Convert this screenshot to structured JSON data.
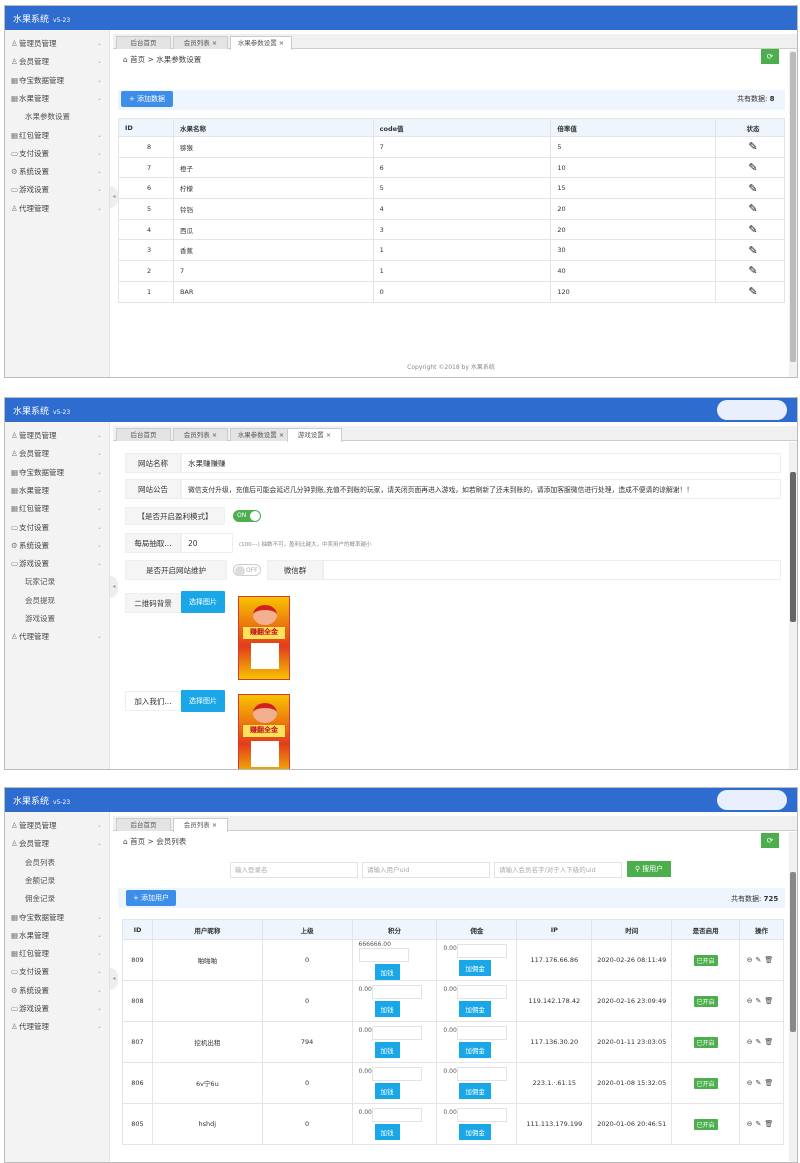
{
  "app": {
    "title": "水果系统",
    "version": "v5-23"
  },
  "colors": {
    "header": "#2f6cd0",
    "primary_button": "#3d8ee8",
    "select_button": "#1aa7e8",
    "success": "#4cae4c"
  },
  "panel1": {
    "sidebar": [
      {
        "icon": "user-icon",
        "glyph": "♙",
        "label": "管理员管理"
      },
      {
        "icon": "person-icon",
        "glyph": "♙",
        "label": "会员管理"
      },
      {
        "icon": "grid-icon",
        "glyph": "▦",
        "label": "夺宝数据管理"
      },
      {
        "icon": "grid-icon",
        "glyph": "▦",
        "label": "水果管理"
      },
      {
        "sub": true,
        "label": "水果参数设置"
      },
      {
        "icon": "grid-icon",
        "glyph": "▦",
        "label": "红包管理"
      },
      {
        "icon": "card-icon",
        "glyph": "▭",
        "label": "支付设置"
      },
      {
        "icon": "gear-icon",
        "glyph": "⚙",
        "label": "系统设置"
      },
      {
        "icon": "card-icon",
        "glyph": "▭",
        "label": "游戏设置"
      },
      {
        "icon": "person-icon",
        "glyph": "♙",
        "label": "代理管理"
      }
    ],
    "tabs": [
      {
        "label": "后台首页"
      },
      {
        "label": "会员列表 ×"
      },
      {
        "label": "水果参数设置 ×",
        "active": true
      }
    ],
    "breadcrumb": {
      "home": "首页",
      "sep": ">",
      "current": "水果参数设置"
    },
    "add_button": "+ 添加数据",
    "count_label": "共有数据:",
    "count": "8",
    "columns": [
      "ID",
      "水果名称",
      "code值",
      "倍率值",
      "状态"
    ],
    "rows": [
      [
        "8",
        "猕猴",
        "7",
        "5"
      ],
      [
        "7",
        "橙子",
        "6",
        "10"
      ],
      [
        "6",
        "柠檬",
        "5",
        "15"
      ],
      [
        "5",
        "铃铛",
        "4",
        "20"
      ],
      [
        "4",
        "西瓜",
        "3",
        "20"
      ],
      [
        "3",
        "香蕉",
        "1",
        "30"
      ],
      [
        "2",
        "7",
        "1",
        "40"
      ],
      [
        "1",
        "BAR",
        "0",
        "120"
      ]
    ],
    "footer": "Copyright ©2018 by 水果系统"
  },
  "panel2": {
    "sidebar": [
      {
        "icon": "user-icon",
        "glyph": "♙",
        "label": "管理员管理"
      },
      {
        "icon": "person-icon",
        "glyph": "♙",
        "label": "会员管理"
      },
      {
        "icon": "grid-icon",
        "glyph": "▦",
        "label": "夺宝数据管理"
      },
      {
        "icon": "grid-icon",
        "glyph": "▦",
        "label": "水果管理"
      },
      {
        "icon": "grid-icon",
        "glyph": "▦",
        "label": "红包管理"
      },
      {
        "icon": "card-icon",
        "glyph": "▭",
        "label": "支付设置"
      },
      {
        "icon": "gear-icon",
        "glyph": "⚙",
        "label": "系统设置"
      },
      {
        "icon": "card-icon",
        "glyph": "▭",
        "label": "游戏设置"
      },
      {
        "sub": true,
        "label": "玩家记录"
      },
      {
        "sub": true,
        "label": "会员提现"
      },
      {
        "sub": true,
        "label": "游戏设置"
      },
      {
        "icon": "person-icon",
        "glyph": "♙",
        "label": "代理管理"
      }
    ],
    "tabs": [
      {
        "label": "后台首页"
      },
      {
        "label": "会员列表 ×"
      },
      {
        "label": "水果参数设置 ×"
      },
      {
        "label": "游戏设置 ×",
        "active": true
      }
    ],
    "form": {
      "site_name_label": "网站名称",
      "site_name": "水果赚赚赚",
      "notice_label": "网站公告",
      "notice": "微信支付升级，充值后可能会延迟几分钟到账,充值不到账的玩家，请关闭页面再进入游戏，如若刷新了还未到账的，请添加客服微信进行处理，造成不便请的谅解谢！！",
      "profit_label": "【是否开启盈利模式】",
      "profit_toggle": "ON",
      "profit_on": true,
      "draw_label": "每局抽取...",
      "draw_value": "20",
      "draw_hint": "(100---) 抽数不可，盈利比越大，中奖用户的概率越小",
      "maintenance_label": "是否开启网站维护",
      "maintenance_toggle": "OFF",
      "maintenance_on": false,
      "wechat_label": "微信群",
      "qr_label": "二维码背景",
      "select_image": "选择图片",
      "join_label": "加入我们...",
      "poster_text": "赚翻全金"
    }
  },
  "panel3": {
    "sidebar": [
      {
        "icon": "user-icon",
        "glyph": "♙",
        "label": "管理员管理"
      },
      {
        "icon": "person-icon",
        "glyph": "♙",
        "label": "会员管理"
      },
      {
        "sub": true,
        "label": "会员列表"
      },
      {
        "sub": true,
        "label": "金额记录"
      },
      {
        "sub": true,
        "label": "佣金记录"
      },
      {
        "icon": "grid-icon",
        "glyph": "▦",
        "label": "夺宝数据管理"
      },
      {
        "icon": "grid-icon",
        "glyph": "▦",
        "label": "水果管理"
      },
      {
        "icon": "grid-icon",
        "glyph": "▦",
        "label": "红包管理"
      },
      {
        "icon": "card-icon",
        "glyph": "▭",
        "label": "支付设置"
      },
      {
        "icon": "gear-icon",
        "glyph": "⚙",
        "label": "系统设置"
      },
      {
        "icon": "card-icon",
        "glyph": "▭",
        "label": "游戏设置"
      },
      {
        "icon": "person-icon",
        "glyph": "♙",
        "label": "代理管理"
      }
    ],
    "tabs": [
      {
        "label": "后台首页"
      },
      {
        "label": "会员列表 ×",
        "active": true
      }
    ],
    "breadcrumb": {
      "home": "首页",
      "sep": ">",
      "current": "会员列表"
    },
    "search": {
      "login_placeholder": "输入登录名",
      "uid_placeholder": "请输入用户uid",
      "parent_placeholder": "请输入会员名字/对于人下级的uid",
      "button": "搜用户"
    },
    "add_button": "+ 添加用户",
    "count_label": "共有数据:",
    "count": "725",
    "columns": [
      "ID",
      "用户昵称",
      "上级",
      "积分",
      "佣金",
      "IP",
      "时间",
      "是否启用",
      "操作"
    ],
    "add_points": "加钱",
    "add_commission": "加佣金",
    "rows": [
      {
        "id": "809",
        "nick": "啪啪啪",
        "parent": "0",
        "points": "666666.00",
        "commission": "0.00",
        "ip": "117.176.66.86",
        "time": "2020-02-26 08:11:49",
        "status": "已开启"
      },
      {
        "id": "808",
        "nick": "",
        "parent": "0",
        "points": "0.00",
        "commission": "0.00",
        "ip": "119.142.178.42",
        "time": "2020-02-16 23:09:49",
        "status": "已开启"
      },
      {
        "id": "807",
        "nick": "挖机出租",
        "parent": "794",
        "points": "0.00",
        "commission": "0.00",
        "ip": "117.136.30.20",
        "time": "2020-01-11 23:03:05",
        "status": "已开启"
      },
      {
        "id": "806",
        "nick": "6v宁6u",
        "parent": "0",
        "points": "0.00",
        "commission": "0.00",
        "ip": "223.1.·.61.15",
        "time": "2020-01-08 15:32:05",
        "status": "已开启"
      },
      {
        "id": "805",
        "nick": "hshdj",
        "parent": "0",
        "points": "0.00",
        "commission": "0.00",
        "ip": "111.113.179.199",
        "time": "2020-01-06 20:46:51",
        "status": "已开启"
      }
    ]
  }
}
